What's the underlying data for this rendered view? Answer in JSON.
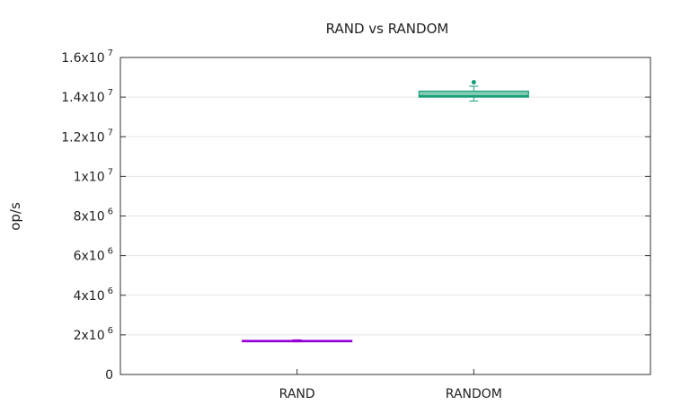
{
  "chart_data": {
    "type": "box",
    "title": "RAND vs RANDOM",
    "ylabel": "op/s",
    "xlabel": "",
    "ylim": [
      0,
      16000000
    ],
    "grid": true,
    "legend": "none",
    "categories": [
      "RAND",
      "RANDOM"
    ],
    "y_ticks": [
      {
        "value": 0,
        "mantissa": "0",
        "exp": ""
      },
      {
        "value": 2000000,
        "mantissa": "2x10",
        "exp": "6"
      },
      {
        "value": 4000000,
        "mantissa": "4x10",
        "exp": "6"
      },
      {
        "value": 6000000,
        "mantissa": "6x10",
        "exp": "6"
      },
      {
        "value": 8000000,
        "mantissa": "8x10",
        "exp": "6"
      },
      {
        "value": 10000000,
        "mantissa": "1x10",
        "exp": "7"
      },
      {
        "value": 12000000,
        "mantissa": "1.2x10",
        "exp": "7"
      },
      {
        "value": 14000000,
        "mantissa": "1.4x10",
        "exp": "7"
      },
      {
        "value": 16000000,
        "mantissa": "1.6x10",
        "exp": "7"
      }
    ],
    "series": [
      {
        "category": "RAND",
        "color": "#9400d3",
        "min": 1650000,
        "q1": 1680000,
        "median": 1700000,
        "q3": 1720000,
        "max": 1750000,
        "outliers": []
      },
      {
        "category": "RANDOM",
        "color": "#1a9e77",
        "min": 13800000,
        "q1": 14000000,
        "median": 14050000,
        "q3": 14300000,
        "max": 14550000,
        "outliers": [
          14750000
        ]
      }
    ]
  }
}
